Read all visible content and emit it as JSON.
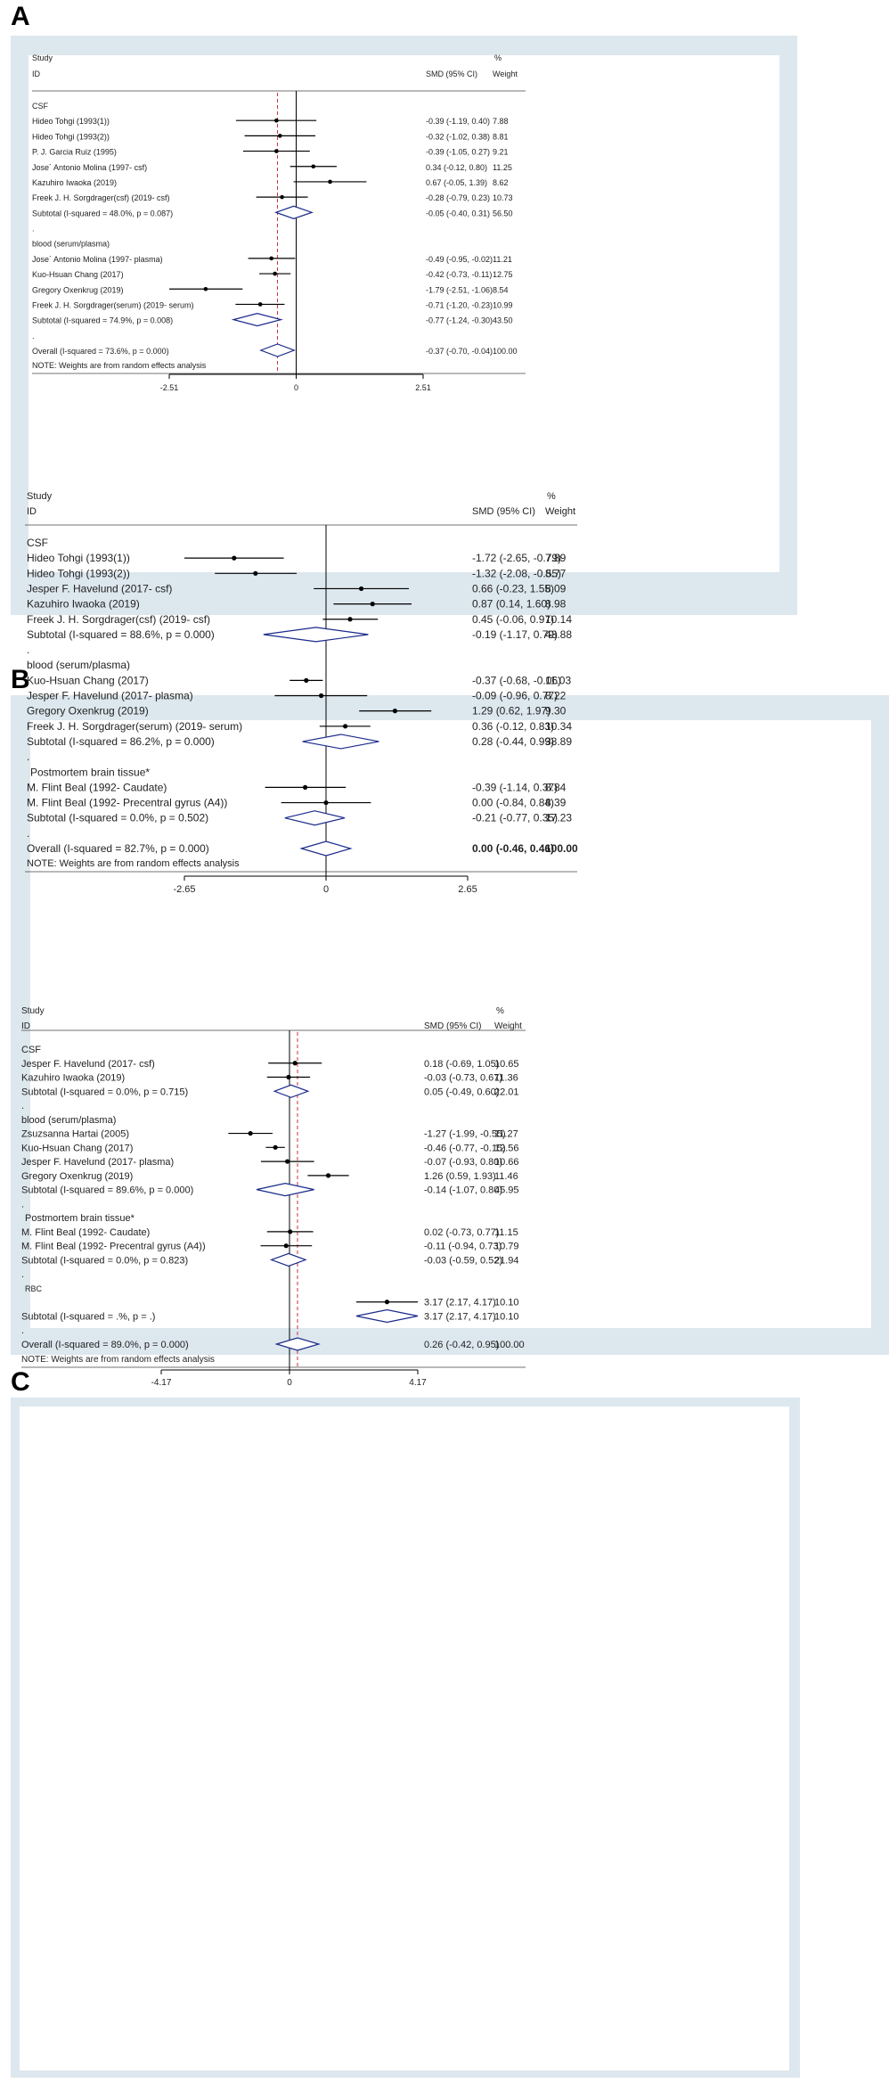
{
  "panels": [
    {
      "letter": "A",
      "header": {
        "study": "Study",
        "id": "ID",
        "effect": "SMD (95% CI)",
        "pct": "%",
        "weight": "Weight"
      },
      "note": "NOTE: Weights are from random effects analysis",
      "axis": {
        "min": -2.51,
        "max": 2.51,
        "ticks": [
          "-2.51",
          "0",
          "2.51"
        ]
      },
      "overall_line": -0.37
    },
    {
      "letter": "B",
      "header": {
        "study": "Study",
        "id": "ID",
        "effect": "SMD (95% CI)",
        "pct": "%",
        "weight": "Weight"
      },
      "note": "NOTE: Weights are from random effects analysis",
      "axis": {
        "min": -2.65,
        "max": 2.65,
        "ticks": [
          "-2.65",
          "0",
          "2.65"
        ]
      },
      "overall_line": null
    },
    {
      "letter": "C",
      "header": {
        "study": "Study",
        "id": "ID",
        "effect": "SMD (95% CI)",
        "pct": "%",
        "weight": "Weight"
      },
      "note": "NOTE: Weights are from random effects analysis",
      "axis": {
        "min": -4.17,
        "max": 4.17,
        "ticks": [
          "-4.17",
          "0",
          "4.17"
        ]
      },
      "overall_line": 0.26
    }
  ],
  "chart_data": [
    {
      "type": "forest",
      "title": "A",
      "xlabel": "SMD (95% CI)",
      "xlim": [
        -2.51,
        2.51
      ],
      "rows": [
        {
          "kind": "group",
          "label": "CSF"
        },
        {
          "kind": "study",
          "label": "Hideo Tohgi (1993(1))",
          "est": -0.39,
          "lo": -1.19,
          "hi": 0.4,
          "text": "-0.39 (-1.19, 0.40)",
          "weight": "7.88"
        },
        {
          "kind": "study",
          "label": "Hideo Tohgi (1993(2))",
          "est": -0.32,
          "lo": -1.02,
          "hi": 0.38,
          "text": "-0.32 (-1.02, 0.38)",
          "weight": "8.81"
        },
        {
          "kind": "study",
          "label": "P. J. Garcia Ruiz (1995)",
          "est": -0.39,
          "lo": -1.05,
          "hi": 0.27,
          "text": "-0.39 (-1.05, 0.27)",
          "weight": "9.21"
        },
        {
          "kind": "study",
          "label": "Jose´ Antonio Molina (1997- csf)",
          "est": 0.34,
          "lo": -0.12,
          "hi": 0.8,
          "text": "0.34 (-0.12, 0.80)",
          "weight": "11.25"
        },
        {
          "kind": "study",
          "label": "Kazuhiro Iwaoka (2019)",
          "est": 0.67,
          "lo": -0.05,
          "hi": 1.39,
          "text": "0.67 (-0.05, 1.39)",
          "weight": "8.62"
        },
        {
          "kind": "study",
          "label": "Freek J. H. Sorgdrager(csf) (2019- csf)",
          "est": -0.28,
          "lo": -0.79,
          "hi": 0.23,
          "text": "-0.28 (-0.79, 0.23)",
          "weight": "10.73"
        },
        {
          "kind": "subtotal",
          "label": "Subtotal  (I-squared = 48.0%, p = 0.087)",
          "est": -0.05,
          "lo": -0.4,
          "hi": 0.31,
          "text": "-0.05 (-0.40, 0.31)",
          "weight": "56.50"
        },
        {
          "kind": "dot",
          "label": "."
        },
        {
          "kind": "group",
          "label": "blood (serum/plasma)"
        },
        {
          "kind": "study",
          "label": "Jose´ Antonio Molina (1997- plasma)",
          "est": -0.49,
          "lo": -0.95,
          "hi": -0.02,
          "text": "-0.49 (-0.95, -0.02)",
          "weight": "11.21"
        },
        {
          "kind": "study",
          "label": "Kuo-Hsuan Chang (2017)",
          "est": -0.42,
          "lo": -0.73,
          "hi": -0.11,
          "text": "-0.42 (-0.73, -0.11)",
          "weight": "12.75"
        },
        {
          "kind": "study",
          "label": "Gregory Oxenkrug (2019)",
          "est": -1.79,
          "lo": -2.51,
          "hi": -1.06,
          "text": "-1.79 (-2.51, -1.06)",
          "weight": "8.54"
        },
        {
          "kind": "study",
          "label": "Freek J. H. Sorgdrager(serum) (2019- serum)",
          "est": -0.71,
          "lo": -1.2,
          "hi": -0.23,
          "text": "-0.71 (-1.20, -0.23)",
          "weight": "10.99"
        },
        {
          "kind": "subtotal",
          "label": "Subtotal  (I-squared = 74.9%, p = 0.008)",
          "est": -0.77,
          "lo": -1.24,
          "hi": -0.3,
          "text": "-0.77 (-1.24, -0.30)",
          "weight": "43.50"
        },
        {
          "kind": "dot",
          "label": "."
        },
        {
          "kind": "overall",
          "label": "Overall  (I-squared = 73.6%, p = 0.000)",
          "est": -0.37,
          "lo": -0.7,
          "hi": -0.04,
          "text": "-0.37 (-0.70, -0.04)",
          "weight": "100.00"
        }
      ]
    },
    {
      "type": "forest",
      "title": "B",
      "xlabel": "SMD (95% CI)",
      "xlim": [
        -2.65,
        2.65
      ],
      "rows": [
        {
          "kind": "group",
          "label": "CSF"
        },
        {
          "kind": "study",
          "label": "Hideo Tohgi (1993(1))",
          "est": -1.72,
          "lo": -2.65,
          "hi": -0.79,
          "text": "-1.72 (-2.65, -0.79)",
          "weight": "7.89"
        },
        {
          "kind": "study",
          "label": "Hideo Tohgi (1993(2))",
          "est": -1.32,
          "lo": -2.08,
          "hi": -0.55,
          "text": "-1.32 (-2.08, -0.55)",
          "weight": "8.77"
        },
        {
          "kind": "study",
          "label": "Jesper F. Havelund (2017- csf)",
          "est": 0.66,
          "lo": -0.23,
          "hi": 1.55,
          "text": "0.66 (-0.23, 1.55)",
          "weight": "8.09"
        },
        {
          "kind": "study",
          "label": "Kazuhiro Iwaoka (2019)",
          "est": 0.87,
          "lo": 0.14,
          "hi": 1.6,
          "text": "0.87 (0.14, 1.60)",
          "weight": "8.98"
        },
        {
          "kind": "study",
          "label": "Freek J. H. Sorgdrager(csf) (2019- csf)",
          "est": 0.45,
          "lo": -0.06,
          "hi": 0.97,
          "text": "0.45 (-0.06, 0.97)",
          "weight": "10.14"
        },
        {
          "kind": "subtotal",
          "label": "Subtotal  (I-squared = 88.6%, p = 0.000)",
          "est": -0.19,
          "lo": -1.17,
          "hi": 0.79,
          "text": "-0.19 (-1.17, 0.79)",
          "weight": "43.88"
        },
        {
          "kind": "dot",
          "label": "."
        },
        {
          "kind": "group",
          "label": "blood (serum/plasma)"
        },
        {
          "kind": "study",
          "label": "Kuo-Hsuan Chang (2017)",
          "est": -0.37,
          "lo": -0.68,
          "hi": -0.06,
          "text": "-0.37 (-0.68, -0.06)",
          "weight": "11.03"
        },
        {
          "kind": "study",
          "label": "Jesper F. Havelund (2017- plasma)",
          "est": -0.09,
          "lo": -0.96,
          "hi": 0.77,
          "text": "-0.09 (-0.96, 0.77)",
          "weight": "8.22"
        },
        {
          "kind": "study",
          "label": "Gregory Oxenkrug (2019)",
          "est": 1.29,
          "lo": 0.62,
          "hi": 1.97,
          "text": "1.29 (0.62, 1.97)",
          "weight": "9.30"
        },
        {
          "kind": "study",
          "label": "Freek J. H. Sorgdrager(serum) (2019- serum)",
          "est": 0.36,
          "lo": -0.12,
          "hi": 0.83,
          "text": "0.36 (-0.12, 0.83)",
          "weight": "10.34"
        },
        {
          "kind": "subtotal",
          "label": "Subtotal  (I-squared = 86.2%, p = 0.000)",
          "est": 0.28,
          "lo": -0.44,
          "hi": 0.99,
          "text": "0.28 (-0.44, 0.99)",
          "weight": "38.89"
        },
        {
          "kind": "dot",
          "label": "."
        },
        {
          "kind": "group",
          "label": "Postmortem brain tissue*"
        },
        {
          "kind": "study",
          "label": "M. Flint Beal (1992- Caudate)",
          "est": -0.39,
          "lo": -1.14,
          "hi": 0.37,
          "text": "-0.39 (-1.14, 0.37)",
          "weight": "8.84"
        },
        {
          "kind": "study",
          "label": "M. Flint Beal (1992- Precentral gyrus (A4))",
          "est": 0.0,
          "lo": -0.84,
          "hi": 0.84,
          "text": "0.00 (-0.84, 0.84)",
          "weight": "8.39"
        },
        {
          "kind": "subtotal",
          "label": "Subtotal  (I-squared = 0.0%, p = 0.502)",
          "est": -0.21,
          "lo": -0.77,
          "hi": 0.35,
          "text": "-0.21 (-0.77, 0.35)",
          "weight": "17.23"
        },
        {
          "kind": "dot",
          "label": "."
        },
        {
          "kind": "overall",
          "label": "Overall  (I-squared = 82.7%, p = 0.000)",
          "est": 0.0,
          "lo": -0.46,
          "hi": 0.46,
          "text": "0.00 (-0.46, 0.46)",
          "weight": "100.00"
        }
      ]
    },
    {
      "type": "forest",
      "title": "C",
      "xlabel": "SMD (95% CI)",
      "xlim": [
        -4.17,
        4.17
      ],
      "rows": [
        {
          "kind": "group",
          "label": "CSF"
        },
        {
          "kind": "study",
          "label": "Jesper F. Havelund (2017- csf)",
          "est": 0.18,
          "lo": -0.69,
          "hi": 1.05,
          "text": "0.18 (-0.69, 1.05)",
          "weight": "10.65"
        },
        {
          "kind": "study",
          "label": "Kazuhiro Iwaoka (2019)",
          "est": -0.03,
          "lo": -0.73,
          "hi": 0.67,
          "text": "-0.03 (-0.73, 0.67)",
          "weight": "11.36"
        },
        {
          "kind": "subtotal",
          "label": "Subtotal  (I-squared = 0.0%, p = 0.715)",
          "est": 0.05,
          "lo": -0.49,
          "hi": 0.6,
          "text": "0.05 (-0.49, 0.60)",
          "weight": "22.01"
        },
        {
          "kind": "dot",
          "label": "."
        },
        {
          "kind": "group",
          "label": "blood (serum/plasma)"
        },
        {
          "kind": "study",
          "label": "Zsuzsanna Hartai (2005)",
          "est": -1.27,
          "lo": -1.99,
          "hi": -0.55,
          "text": "-1.27 (-1.99, -0.55)",
          "weight": "11.27"
        },
        {
          "kind": "study",
          "label": "Kuo-Hsuan Chang (2017)",
          "est": -0.46,
          "lo": -0.77,
          "hi": -0.15,
          "text": "-0.46 (-0.77, -0.15)",
          "weight": "12.56"
        },
        {
          "kind": "study",
          "label": "Jesper F. Havelund (2017- plasma)",
          "est": -0.07,
          "lo": -0.93,
          "hi": 0.8,
          "text": "-0.07 (-0.93, 0.80)",
          "weight": "10.66"
        },
        {
          "kind": "study",
          "label": "Gregory Oxenkrug (2019)",
          "est": 1.26,
          "lo": 0.59,
          "hi": 1.93,
          "text": "1.26 (0.59, 1.93)",
          "weight": "11.46"
        },
        {
          "kind": "subtotal",
          "label": "Subtotal  (I-squared = 89.6%, p = 0.000)",
          "est": -0.14,
          "lo": -1.07,
          "hi": 0.8,
          "text": "-0.14 (-1.07, 0.80)",
          "weight": "45.95"
        },
        {
          "kind": "dot",
          "label": "."
        },
        {
          "kind": "group",
          "label": "Postmortem brain tissue*"
        },
        {
          "kind": "study",
          "label": "M. Flint Beal (1992- Caudate)",
          "est": 0.02,
          "lo": -0.73,
          "hi": 0.77,
          "text": "0.02 (-0.73, 0.77)",
          "weight": "11.15"
        },
        {
          "kind": "study",
          "label": "M. Flint Beal (1992- Precentral gyrus (A4))",
          "est": -0.11,
          "lo": -0.94,
          "hi": 0.73,
          "text": "-0.11 (-0.94, 0.73)",
          "weight": "10.79"
        },
        {
          "kind": "subtotal",
          "label": "Subtotal  (I-squared = 0.0%, p = 0.823)",
          "est": -0.03,
          "lo": -0.59,
          "hi": 0.52,
          "text": "-0.03 (-0.59, 0.52)",
          "weight": "21.94"
        },
        {
          "kind": "dot",
          "label": "."
        },
        {
          "kind": "group",
          "label": "RBC"
        },
        {
          "kind": "study",
          "label": "",
          "est": 3.17,
          "lo": 2.17,
          "hi": 4.17,
          "text": "3.17 (2.17, 4.17)",
          "weight": "10.10"
        },
        {
          "kind": "subtotal",
          "label": "Subtotal  (I-squared = .%, p = .)",
          "est": 3.17,
          "lo": 2.17,
          "hi": 4.17,
          "text": "3.17 (2.17, 4.17)",
          "weight": "10.10"
        },
        {
          "kind": "dot",
          "label": "."
        },
        {
          "kind": "overall",
          "label": "Overall  (I-squared = 89.0%, p = 0.000)",
          "est": 0.26,
          "lo": -0.42,
          "hi": 0.95,
          "text": "0.26 (-0.42, 0.95)",
          "weight": "100.00"
        }
      ]
    }
  ]
}
